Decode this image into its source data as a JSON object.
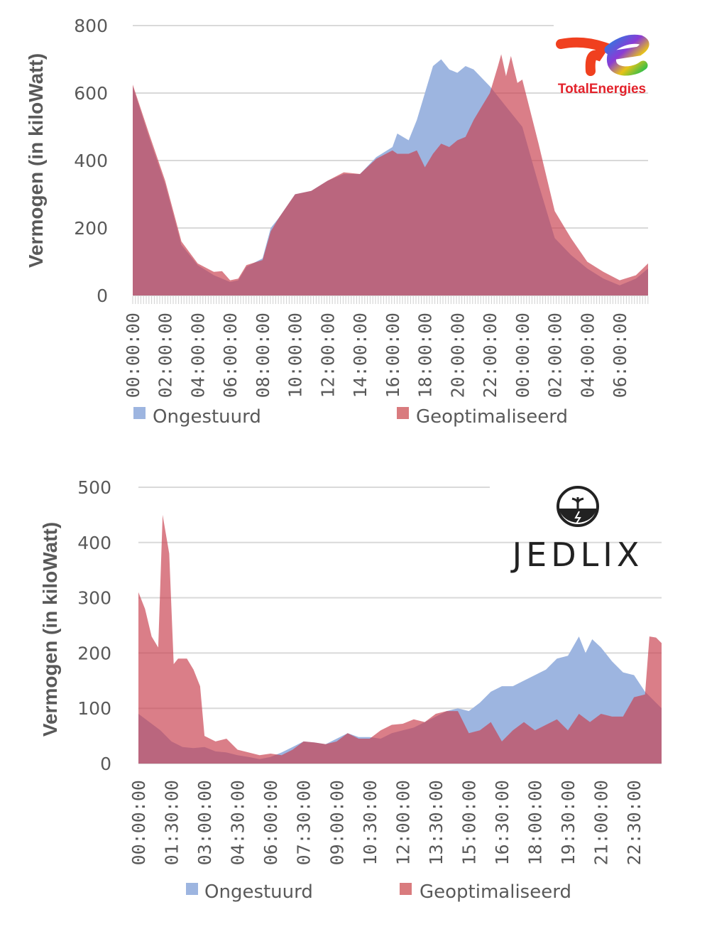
{
  "colors": {
    "ongestuurd": "#9db5e0",
    "geoptimaliseerd": "#c8414f",
    "grid": "#d9d9d9",
    "text": "#595959"
  },
  "logos": {
    "top": "TotalEnergies",
    "bottom": "JEDLIX"
  },
  "chart_data": [
    {
      "type": "area",
      "title": "",
      "xlabel": "",
      "ylabel": "Vermogen (in kiloWatt)",
      "ylim": [
        0,
        800
      ],
      "yticks": [
        0,
        200,
        400,
        600,
        800
      ],
      "grid": true,
      "legend_position": "bottom",
      "x_unit": "hours since start",
      "xlim": [
        0,
        31.75
      ],
      "xtick_labels": [
        "00:00:00",
        "02:00:00",
        "04:00:00",
        "06:00:00",
        "08:00:00",
        "10:00:00",
        "12:00:00",
        "14:00:00",
        "16:00:00",
        "18:00:00",
        "20:00:00",
        "22:00:00",
        "00:00:00",
        "02:00:00",
        "04:00:00",
        "06:00:00"
      ],
      "xtick_values": [
        0,
        2,
        4,
        6,
        8,
        10,
        12,
        14,
        16,
        18,
        20,
        22,
        24,
        26,
        28,
        30
      ],
      "series": [
        {
          "name": "Ongestuurd",
          "x": [
            0,
            1,
            2,
            3,
            4,
            5,
            6,
            6.5,
            7,
            8,
            8.5,
            9,
            10,
            11,
            12,
            13,
            14,
            15,
            16,
            16.3,
            17,
            17.5,
            18,
            18.5,
            19,
            19.5,
            20,
            20.5,
            21,
            22,
            23,
            24,
            25,
            26,
            27,
            28,
            29,
            30,
            31,
            31.75
          ],
          "values": [
            620,
            470,
            330,
            150,
            90,
            60,
            40,
            45,
            85,
            110,
            200,
            230,
            300,
            310,
            340,
            360,
            360,
            410,
            440,
            480,
            460,
            520,
            600,
            680,
            700,
            670,
            660,
            680,
            670,
            620,
            560,
            500,
            330,
            170,
            120,
            80,
            50,
            30,
            50,
            80
          ]
        },
        {
          "name": "Geoptimaliseerd",
          "x": [
            0,
            1,
            2,
            3,
            4,
            5,
            5.5,
            6,
            6.5,
            7,
            8,
            8.5,
            9,
            10,
            11,
            12,
            13,
            14,
            15,
            16,
            16.3,
            17,
            17.5,
            18,
            18.5,
            19,
            19.5,
            20,
            20.5,
            21,
            21.5,
            22,
            22.5,
            22.7,
            23,
            23.3,
            23.7,
            24,
            25,
            26,
            27,
            28,
            29,
            30,
            31,
            31.75
          ],
          "values": [
            625,
            480,
            340,
            160,
            95,
            70,
            72,
            45,
            50,
            90,
            105,
            190,
            230,
            300,
            310,
            340,
            365,
            360,
            405,
            430,
            420,
            420,
            430,
            380,
            420,
            450,
            440,
            460,
            470,
            520,
            560,
            600,
            680,
            715,
            650,
            710,
            630,
            640,
            450,
            250,
            170,
            100,
            70,
            45,
            60,
            95
          ]
        }
      ],
      "legend": [
        "Ongestuurd",
        "Geoptimaliseerd"
      ]
    },
    {
      "type": "area",
      "title": "",
      "xlabel": "",
      "ylabel": "Vermogen (in kiloWatt)",
      "ylim": [
        0,
        500
      ],
      "yticks": [
        0,
        100,
        200,
        300,
        400,
        500
      ],
      "grid": true,
      "legend_position": "bottom",
      "x_unit": "hours since start",
      "xlim": [
        0,
        23.75
      ],
      "xtick_labels": [
        "00:00:00",
        "01:30:00",
        "03:00:00",
        "04:30:00",
        "06:00:00",
        "07:30:00",
        "09:00:00",
        "10:30:00",
        "12:00:00",
        "13:30:00",
        "15:00:00",
        "16:30:00",
        "18:00:00",
        "19:30:00",
        "21:00:00",
        "22:30:00"
      ],
      "xtick_values": [
        0,
        1.5,
        3,
        4.5,
        6,
        7.5,
        9,
        10.5,
        12,
        13.5,
        15,
        16.5,
        18,
        19.5,
        21,
        22.5
      ],
      "series": [
        {
          "name": "Ongestuurd",
          "x": [
            0,
            0.5,
            1,
            1.5,
            2,
            2.5,
            3,
            3.5,
            4,
            4.5,
            5,
            5.5,
            6,
            6.5,
            7,
            7.5,
            8,
            8.5,
            9,
            9.5,
            10,
            10.5,
            11,
            11.5,
            12,
            12.5,
            13,
            13.5,
            14,
            14.5,
            15,
            15.5,
            16,
            16.5,
            17,
            17.5,
            18,
            18.5,
            19,
            19.5,
            20,
            20.3,
            20.6,
            21,
            21.5,
            22,
            22.5,
            23,
            23.5,
            23.75
          ],
          "values": [
            90,
            75,
            60,
            40,
            30,
            28,
            30,
            22,
            20,
            15,
            12,
            8,
            12,
            20,
            30,
            40,
            38,
            35,
            45,
            55,
            48,
            48,
            45,
            55,
            60,
            65,
            75,
            85,
            95,
            100,
            95,
            110,
            130,
            140,
            140,
            150,
            160,
            170,
            190,
            195,
            230,
            200,
            225,
            210,
            185,
            165,
            160,
            130,
            110,
            100
          ]
        },
        {
          "name": "Geoptimaliseerd",
          "x": [
            0,
            0.3,
            0.6,
            0.9,
            1.1,
            1.4,
            1.6,
            1.8,
            2.2,
            2.5,
            2.8,
            3,
            3.5,
            4,
            4.5,
            5,
            5.5,
            6,
            6.5,
            7,
            7.5,
            8,
            8.5,
            9,
            9.5,
            10,
            10.5,
            11,
            11.5,
            12,
            12.5,
            13,
            13.5,
            14,
            14.5,
            15,
            15.5,
            16,
            16.5,
            17,
            17.5,
            18,
            18.5,
            19,
            19.5,
            20,
            20.5,
            21,
            21.5,
            22,
            22.5,
            23,
            23.2,
            23.5,
            23.75
          ],
          "values": [
            310,
            280,
            230,
            210,
            450,
            380,
            180,
            190,
            190,
            170,
            140,
            50,
            40,
            45,
            25,
            20,
            15,
            18,
            15,
            25,
            40,
            38,
            35,
            40,
            55,
            45,
            45,
            60,
            70,
            72,
            80,
            75,
            90,
            95,
            95,
            55,
            60,
            75,
            40,
            60,
            75,
            60,
            70,
            80,
            60,
            90,
            75,
            90,
            85,
            85,
            120,
            125,
            230,
            228,
            218
          ]
        }
      ],
      "legend": [
        "Ongestuurd",
        "Geoptimaliseerd"
      ]
    }
  ]
}
